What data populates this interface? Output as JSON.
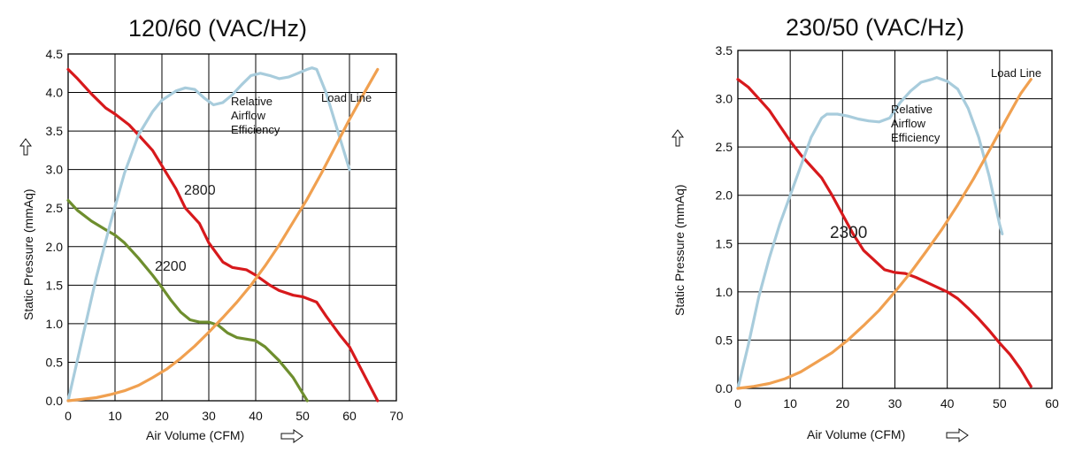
{
  "colors": {
    "red": "#d7191c",
    "green": "#6e8e2e",
    "blue": "#a8ccdc",
    "orange": "#f0a050"
  },
  "chart_data": [
    {
      "type": "line",
      "title": "120/60 (VAC/Hz)",
      "xlabel": "Air Volume (CFM)",
      "ylabel": "Static Pressure (mmAq)",
      "xlim": [
        0,
        70
      ],
      "ylim": [
        0,
        4.5
      ],
      "xticks": [
        "0",
        "10",
        "20",
        "30",
        "40",
        "50",
        "60",
        "70"
      ],
      "yticks": [
        "0.0",
        "0.5",
        "1.0",
        "1.5",
        "2.0",
        "2.5",
        "3.0",
        "3.5",
        "4.0",
        "4.5"
      ],
      "grid": true,
      "annotation_lines": [
        "Relative",
        "Airflow",
        "Efficiency"
      ],
      "series": [
        {
          "name": "2800",
          "color": "red",
          "label_at": [
            25,
            2.75
          ],
          "points": [
            [
              0,
              4.3
            ],
            [
              2,
              4.18
            ],
            [
              5,
              3.98
            ],
            [
              8,
              3.8
            ],
            [
              10,
              3.72
            ],
            [
              13,
              3.58
            ],
            [
              15,
              3.45
            ],
            [
              18,
              3.25
            ],
            [
              20,
              3.05
            ],
            [
              23,
              2.75
            ],
            [
              25,
              2.5
            ],
            [
              28,
              2.3
            ],
            [
              30,
              2.05
            ],
            [
              33,
              1.8
            ],
            [
              35,
              1.73
            ],
            [
              38,
              1.7
            ],
            [
              40,
              1.63
            ],
            [
              43,
              1.5
            ],
            [
              45,
              1.43
            ],
            [
              48,
              1.37
            ],
            [
              50,
              1.35
            ],
            [
              53,
              1.28
            ],
            [
              55,
              1.1
            ],
            [
              58,
              0.85
            ],
            [
              60,
              0.7
            ],
            [
              63,
              0.35
            ],
            [
              66,
              0.0
            ]
          ]
        },
        {
          "name": "2200",
          "color": "green",
          "label_at": [
            23,
            1.75
          ],
          "points": [
            [
              0,
              2.6
            ],
            [
              2,
              2.47
            ],
            [
              5,
              2.33
            ],
            [
              8,
              2.22
            ],
            [
              10,
              2.15
            ],
            [
              12,
              2.05
            ],
            [
              15,
              1.85
            ],
            [
              18,
              1.63
            ],
            [
              20,
              1.47
            ],
            [
              22,
              1.3
            ],
            [
              24,
              1.15
            ],
            [
              26,
              1.05
            ],
            [
              28,
              1.02
            ],
            [
              30,
              1.02
            ],
            [
              32,
              0.98
            ],
            [
              34,
              0.88
            ],
            [
              36,
              0.82
            ],
            [
              38,
              0.8
            ],
            [
              40,
              0.78
            ],
            [
              42,
              0.7
            ],
            [
              45,
              0.52
            ],
            [
              48,
              0.3
            ],
            [
              50,
              0.1
            ],
            [
              51,
              0.0
            ]
          ]
        },
        {
          "name": "Relative Airflow Efficiency",
          "color": "blue",
          "points": [
            [
              0,
              0.0
            ],
            [
              3,
              0.8
            ],
            [
              6,
              1.6
            ],
            [
              9,
              2.3
            ],
            [
              12,
              2.95
            ],
            [
              15,
              3.45
            ],
            [
              18,
              3.75
            ],
            [
              20,
              3.9
            ],
            [
              23,
              4.02
            ],
            [
              25,
              4.06
            ],
            [
              27,
              4.04
            ],
            [
              29,
              3.93
            ],
            [
              31,
              3.84
            ],
            [
              33,
              3.87
            ],
            [
              35,
              3.97
            ],
            [
              37,
              4.1
            ],
            [
              39,
              4.22
            ],
            [
              41,
              4.25
            ],
            [
              43,
              4.22
            ],
            [
              45,
              4.18
            ],
            [
              47,
              4.2
            ],
            [
              49,
              4.25
            ],
            [
              51,
              4.3
            ],
            [
              52,
              4.32
            ],
            [
              53,
              4.3
            ],
            [
              55,
              4.0
            ],
            [
              57,
              3.6
            ],
            [
              59,
              3.2
            ],
            [
              60,
              3.0
            ]
          ]
        },
        {
          "name": "Load Line",
          "color": "orange",
          "points": [
            [
              0,
              0.0
            ],
            [
              3,
              0.02
            ],
            [
              6,
              0.04
            ],
            [
              9,
              0.08
            ],
            [
              12,
              0.13
            ],
            [
              15,
              0.2
            ],
            [
              18,
              0.3
            ],
            [
              21,
              0.41
            ],
            [
              24,
              0.55
            ],
            [
              27,
              0.71
            ],
            [
              30,
              0.89
            ],
            [
              33,
              1.08
            ],
            [
              36,
              1.28
            ],
            [
              39,
              1.5
            ],
            [
              42,
              1.75
            ],
            [
              45,
              2.02
            ],
            [
              48,
              2.32
            ],
            [
              51,
              2.62
            ],
            [
              54,
              2.95
            ],
            [
              57,
              3.3
            ],
            [
              60,
              3.65
            ],
            [
              63,
              3.98
            ],
            [
              66,
              4.3
            ]
          ]
        }
      ]
    },
    {
      "type": "line",
      "title": "230/50 (VAC/Hz)",
      "xlabel": "Air Volume (CFM)",
      "ylabel": "Static Pressure (mmAq)",
      "xlim": [
        0,
        60
      ],
      "ylim": [
        0,
        3.5
      ],
      "xticks": [
        "0",
        "10",
        "20",
        "30",
        "40",
        "50",
        "60"
      ],
      "yticks": [
        "0.0",
        "0.5",
        "1.0",
        "1.5",
        "2.0",
        "2.5",
        "3.0",
        "3.5"
      ],
      "grid": true,
      "annotation_lines": [
        "Relative",
        "Airflow",
        "Efficiency"
      ],
      "series": [
        {
          "name": "2300",
          "color": "red",
          "points": [
            [
              0,
              3.2
            ],
            [
              2,
              3.12
            ],
            [
              4,
              3.0
            ],
            [
              6,
              2.88
            ],
            [
              8,
              2.72
            ],
            [
              10,
              2.56
            ],
            [
              12,
              2.42
            ],
            [
              14,
              2.3
            ],
            [
              16,
              2.18
            ],
            [
              18,
              2.0
            ],
            [
              20,
              1.8
            ],
            [
              22,
              1.6
            ],
            [
              24,
              1.43
            ],
            [
              26,
              1.33
            ],
            [
              28,
              1.23
            ],
            [
              30,
              1.2
            ],
            [
              32,
              1.19
            ],
            [
              34,
              1.15
            ],
            [
              36,
              1.1
            ],
            [
              38,
              1.05
            ],
            [
              40,
              1.0
            ],
            [
              42,
              0.93
            ],
            [
              44,
              0.83
            ],
            [
              46,
              0.72
            ],
            [
              48,
              0.6
            ],
            [
              50,
              0.47
            ],
            [
              52,
              0.35
            ],
            [
              54,
              0.2
            ],
            [
              56,
              0.02
            ]
          ]
        },
        {
          "name": "Relative Airflow Efficiency",
          "color": "blue",
          "points": [
            [
              0,
              0.0
            ],
            [
              2,
              0.45
            ],
            [
              4,
              0.95
            ],
            [
              6,
              1.35
            ],
            [
              8,
              1.7
            ],
            [
              10,
              2.0
            ],
            [
              12,
              2.3
            ],
            [
              14,
              2.6
            ],
            [
              16,
              2.8
            ],
            [
              17,
              2.84
            ],
            [
              19,
              2.84
            ],
            [
              21,
              2.82
            ],
            [
              23,
              2.79
            ],
            [
              25,
              2.77
            ],
            [
              27,
              2.76
            ],
            [
              29,
              2.8
            ],
            [
              31,
              2.96
            ],
            [
              33,
              3.08
            ],
            [
              35,
              3.17
            ],
            [
              37,
              3.2
            ],
            [
              38,
              3.22
            ],
            [
              40,
              3.18
            ],
            [
              42,
              3.1
            ],
            [
              44,
              2.9
            ],
            [
              46,
              2.6
            ],
            [
              48,
              2.2
            ],
            [
              50,
              1.7
            ],
            [
              50.5,
              1.6
            ]
          ]
        },
        {
          "name": "Load Line",
          "color": "orange",
          "points": [
            [
              0,
              0.0
            ],
            [
              3,
              0.02
            ],
            [
              6,
              0.05
            ],
            [
              9,
              0.1
            ],
            [
              12,
              0.17
            ],
            [
              15,
              0.27
            ],
            [
              18,
              0.37
            ],
            [
              21,
              0.5
            ],
            [
              24,
              0.65
            ],
            [
              27,
              0.81
            ],
            [
              30,
              1.0
            ],
            [
              33,
              1.2
            ],
            [
              36,
              1.42
            ],
            [
              39,
              1.65
            ],
            [
              42,
              1.9
            ],
            [
              45,
              2.17
            ],
            [
              48,
              2.46
            ],
            [
              51,
              2.76
            ],
            [
              54,
              3.05
            ],
            [
              56,
              3.2
            ]
          ]
        }
      ]
    }
  ]
}
